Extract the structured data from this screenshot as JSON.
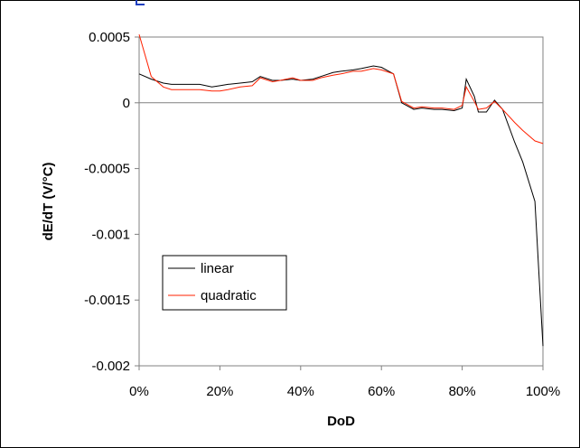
{
  "chart_data": {
    "type": "line",
    "title": "",
    "xlabel": "DoD",
    "ylabel": "dE/dT (V/°C)",
    "xlim": [
      0,
      100
    ],
    "ylim": [
      -0.002,
      0.0005
    ],
    "x_ticks": [
      "0%",
      "20%",
      "40%",
      "60%",
      "80%",
      "100%"
    ],
    "y_ticks": [
      "0.0005",
      "0",
      "-0.0005",
      "-0.001",
      "-0.0015",
      "-0.002"
    ],
    "grid": false,
    "zero_line": true,
    "legend_position": "left-middle",
    "series": [
      {
        "name": "linear",
        "color": "#000000",
        "points": [
          [
            0,
            0.00022
          ],
          [
            3,
            0.00018
          ],
          [
            6,
            0.00015
          ],
          [
            8,
            0.00014
          ],
          [
            10,
            0.00014
          ],
          [
            13,
            0.00014
          ],
          [
            15,
            0.00014
          ],
          [
            18,
            0.00012
          ],
          [
            20,
            0.00013
          ],
          [
            22,
            0.00014
          ],
          [
            25,
            0.00015
          ],
          [
            28,
            0.00016
          ],
          [
            30,
            0.0002
          ],
          [
            33,
            0.00017
          ],
          [
            35,
            0.00017
          ],
          [
            38,
            0.00018
          ],
          [
            40,
            0.00017
          ],
          [
            43,
            0.00018
          ],
          [
            45,
            0.0002
          ],
          [
            48,
            0.00023
          ],
          [
            50,
            0.00024
          ],
          [
            53,
            0.00025
          ],
          [
            55,
            0.00026
          ],
          [
            58,
            0.00028
          ],
          [
            60,
            0.00027
          ],
          [
            63,
            0.00022
          ],
          [
            65,
            0.0
          ],
          [
            68,
            -5e-05
          ],
          [
            70,
            -4e-05
          ],
          [
            73,
            -5e-05
          ],
          [
            75,
            -5e-05
          ],
          [
            78,
            -6e-05
          ],
          [
            80,
            -4e-05
          ],
          [
            81,
            0.00018
          ],
          [
            83,
            5e-05
          ],
          [
            84,
            -7e-05
          ],
          [
            86,
            -7e-05
          ],
          [
            88,
            2e-05
          ],
          [
            90,
            -5e-05
          ],
          [
            93,
            -0.0003
          ],
          [
            95,
            -0.00045
          ],
          [
            98,
            -0.00075
          ],
          [
            100,
            -0.00185
          ]
        ]
      },
      {
        "name": "quadratic",
        "color": "#ff2000",
        "points": [
          [
            0,
            0.00052
          ],
          [
            3,
            0.0002
          ],
          [
            6,
            0.00012
          ],
          [
            8,
            0.0001
          ],
          [
            10,
            0.0001
          ],
          [
            13,
            0.0001
          ],
          [
            15,
            0.0001
          ],
          [
            18,
            9e-05
          ],
          [
            20,
            9e-05
          ],
          [
            22,
            0.0001
          ],
          [
            25,
            0.00012
          ],
          [
            28,
            0.00013
          ],
          [
            30,
            0.00019
          ],
          [
            33,
            0.00016
          ],
          [
            35,
            0.00017
          ],
          [
            38,
            0.00019
          ],
          [
            40,
            0.00017
          ],
          [
            43,
            0.00017
          ],
          [
            45,
            0.00019
          ],
          [
            48,
            0.00021
          ],
          [
            50,
            0.00022
          ],
          [
            53,
            0.00024
          ],
          [
            55,
            0.00024
          ],
          [
            58,
            0.00026
          ],
          [
            60,
            0.00025
          ],
          [
            63,
            0.00022
          ],
          [
            65,
            1e-05
          ],
          [
            68,
            -4e-05
          ],
          [
            70,
            -3e-05
          ],
          [
            73,
            -4e-05
          ],
          [
            75,
            -4e-05
          ],
          [
            78,
            -5e-05
          ],
          [
            80,
            -2e-05
          ],
          [
            81,
            0.00012
          ],
          [
            83,
            1e-05
          ],
          [
            84,
            -5e-05
          ],
          [
            86,
            -4e-05
          ],
          [
            88,
            1e-05
          ],
          [
            90,
            -5e-05
          ],
          [
            93,
            -0.00015
          ],
          [
            95,
            -0.00021
          ],
          [
            98,
            -0.00029
          ],
          [
            100,
            -0.00031
          ]
        ]
      }
    ]
  }
}
